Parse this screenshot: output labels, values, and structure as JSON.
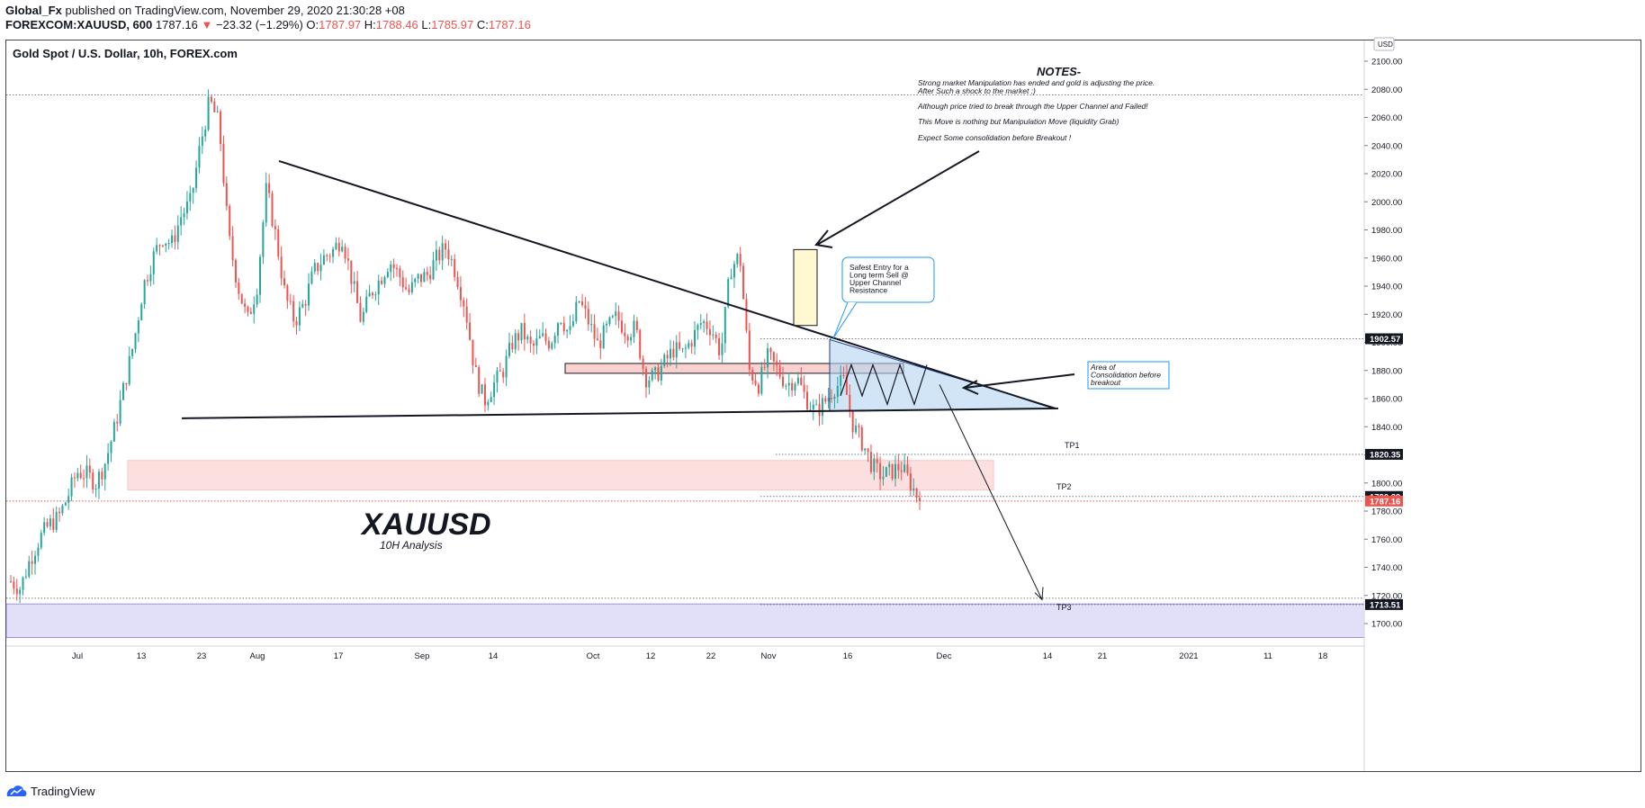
{
  "header": {
    "line1_user": "Global_Fx",
    "line1_rest": " published on TradingView.com, November 29, 2020 21:30:28 +08",
    "line2_symbol": "FOREXCOM:XAUUSD, 600",
    "line2_last": " 1787.16 ",
    "line2_change_arrow": "▼",
    "line2_change": " −23.32 (−1.29%) ",
    "o_label": "O:",
    "o_value": "1787.97",
    "h_label": " H:",
    "h_value": "1788.46",
    "l_label": " L:",
    "l_value": "1785.97",
    "c_label": " C:",
    "c_value": "1787.16"
  },
  "chart_title": "Gold Spot / U.S. Dollar, 10h, FOREX.com",
  "currency_badge": "USD",
  "footer": {
    "brand": "TradingView"
  },
  "colors": {
    "up": "#26a69a",
    "down": "#ef5350",
    "zone_red": "#f8c7c4",
    "zone_blue": "#b3d4f0",
    "zone_purple": "#d6d3f7",
    "grid_dot": "#9598a1"
  },
  "chart_data": {
    "type": "candlestick",
    "title": "Gold Spot / U.S. Dollar, 10h, FOREX.com",
    "ylim": [
      1683,
      2110
    ],
    "y_ticks": [
      "2100.00",
      "2080.00",
      "2060.00",
      "2040.00",
      "2020.00",
      "2000.00",
      "1980.00",
      "1960.00",
      "1940.00",
      "1920.00",
      "1900.00",
      "1880.00",
      "1860.00",
      "1840.00",
      "1820.00",
      "1800.00",
      "1780.00",
      "1760.00",
      "1740.00",
      "1720.00",
      "1700.00"
    ],
    "x_ticks": [
      "Jul",
      "13",
      "23",
      "Aug",
      "17",
      "Sep",
      "14",
      "Oct",
      "12",
      "22",
      "Nov",
      "16",
      "Dec",
      "14",
      "21",
      "2021",
      "11",
      "18"
    ],
    "price_tags": [
      {
        "label": "1902.57",
        "value": 1902.57,
        "style": "dark"
      },
      {
        "label": "1820.35",
        "value": 1820.35,
        "style": "dark"
      },
      {
        "label": "1790.39",
        "value": 1790.39,
        "style": "dark"
      },
      {
        "label": "1787.16",
        "value": 1787.16,
        "style": "red"
      },
      {
        "label": "1713.51",
        "value": 1713.51,
        "style": "dark"
      }
    ],
    "price_path": [
      1730,
      1725,
      1745,
      1760,
      1770,
      1775,
      1790,
      1808,
      1806,
      1800,
      1815,
      1840,
      1870,
      1900,
      1940,
      1960,
      1975,
      1970,
      1990,
      2000,
      2040,
      2072,
      2055,
      1975,
      1940,
      1915,
      1940,
      2010,
      1975,
      1932,
      1915,
      1928,
      1950,
      1960,
      1965,
      1975,
      1945,
      1915,
      1935,
      1945,
      1958,
      1948,
      1935,
      1945,
      1948,
      1960,
      1968,
      1950,
      1925,
      1880,
      1858,
      1870,
      1880,
      1900,
      1908,
      1895,
      1903,
      1900,
      1920,
      1905,
      1930,
      1915,
      1898,
      1910,
      1918,
      1908,
      1910,
      1875,
      1875,
      1885,
      1895,
      1892,
      1903,
      1915,
      1910,
      1892,
      1952,
      1962,
      1880,
      1870,
      1890,
      1880,
      1870,
      1875,
      1860,
      1850,
      1858,
      1868,
      1872,
      1840,
      1828,
      1812,
      1805,
      1808,
      1812,
      1800,
      1787.16
    ],
    "texts": {
      "symbol": "XAUUSD",
      "subtitle": "10H Analysis",
      "notes_title": "NOTES-",
      "notes": [
        "Strong market Manipulation has ended and gold is adjusting the price.",
        "After Such a shock to the market :)",
        "Although price tried to break through the Upper Channel and Failed!",
        "This Move is nothing but Manipulation Move (liquidity Grab)",
        "Expect Some consolidation before Breakout !"
      ],
      "callout_entry": [
        "Safest Entry for a",
        "Long term Sell @",
        "Upper Channel",
        "Resistance"
      ],
      "callout_consolidation": [
        "Area of",
        "Consolidation before",
        "breakout"
      ],
      "tp1": "TP1",
      "tp2": "TP2",
      "tp3": "TP3"
    }
  }
}
